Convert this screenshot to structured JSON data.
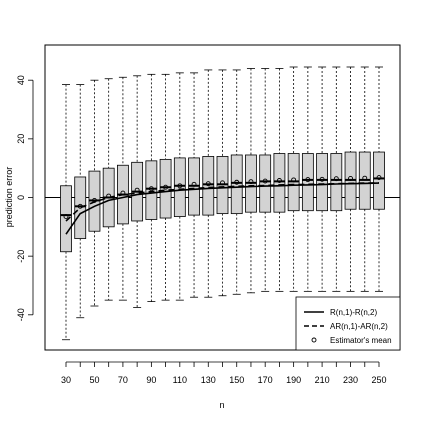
{
  "chart_data": {
    "type": "boxplot",
    "xlabel": "n",
    "ylabel": "prediction error",
    "x_tick_labels": [
      "30",
      "50",
      "70",
      "90",
      "110",
      "130",
      "150",
      "170",
      "190",
      "210",
      "230",
      "250"
    ],
    "ylim": [
      -52,
      52
    ],
    "y_ticks": [
      -40,
      -20,
      0,
      20,
      40
    ],
    "x": [
      30,
      40,
      50,
      60,
      70,
      80,
      90,
      100,
      110,
      120,
      130,
      140,
      150,
      160,
      170,
      180,
      190,
      200,
      210,
      220,
      230,
      240,
      250
    ],
    "boxes": [
      {
        "n": 30,
        "whisker_low": -48.5,
        "q1": -18.5,
        "median": -6,
        "q3": 4,
        "whisker_high": 38.5
      },
      {
        "n": 40,
        "whisker_low": -41,
        "q1": -14,
        "median": -3,
        "q3": 7,
        "whisker_high": 38.5
      },
      {
        "n": 50,
        "whisker_low": -37,
        "q1": -11.5,
        "median": -1,
        "q3": 9,
        "whisker_high": 40
      },
      {
        "n": 60,
        "whisker_low": -35,
        "q1": -10,
        "median": 0,
        "q3": 10,
        "whisker_high": 40.5
      },
      {
        "n": 70,
        "whisker_low": -35,
        "q1": -9,
        "median": 1,
        "q3": 11,
        "whisker_high": 41
      },
      {
        "n": 80,
        "whisker_low": -37.5,
        "q1": -8,
        "median": 2,
        "q3": 12,
        "whisker_high": 41.5
      },
      {
        "n": 90,
        "whisker_low": -35.5,
        "q1": -7.5,
        "median": 3,
        "q3": 12.5,
        "whisker_high": 42
      },
      {
        "n": 100,
        "whisker_low": -35,
        "q1": -7,
        "median": 3.5,
        "q3": 13,
        "whisker_high": 42
      },
      {
        "n": 110,
        "whisker_low": -35,
        "q1": -6.5,
        "median": 4,
        "q3": 13.5,
        "whisker_high": 42.5
      },
      {
        "n": 120,
        "whisker_low": -34,
        "q1": -6,
        "median": 4,
        "q3": 13.5,
        "whisker_high": 42.5
      },
      {
        "n": 130,
        "whisker_low": -34,
        "q1": -6,
        "median": 4.5,
        "q3": 14,
        "whisker_high": 43.5
      },
      {
        "n": 140,
        "whisker_low": -33.5,
        "q1": -5.5,
        "median": 4.5,
        "q3": 14,
        "whisker_high": 43.5
      },
      {
        "n": 150,
        "whisker_low": -33,
        "q1": -5.5,
        "median": 5,
        "q3": 14.5,
        "whisker_high": 43.5
      },
      {
        "n": 160,
        "whisker_low": -32.5,
        "q1": -5,
        "median": 5,
        "q3": 14.5,
        "whisker_high": 44
      },
      {
        "n": 170,
        "whisker_low": -32,
        "q1": -5,
        "median": 5.5,
        "q3": 14.5,
        "whisker_high": 44
      },
      {
        "n": 180,
        "whisker_low": -32,
        "q1": -5,
        "median": 5.5,
        "q3": 15,
        "whisker_high": 44
      },
      {
        "n": 190,
        "whisker_low": -32,
        "q1": -4.5,
        "median": 5.5,
        "q3": 15,
        "whisker_high": 44.5
      },
      {
        "n": 200,
        "whisker_low": -32,
        "q1": -4.5,
        "median": 6,
        "q3": 15,
        "whisker_high": 44.5
      },
      {
        "n": 210,
        "whisker_low": -32,
        "q1": -4.5,
        "median": 6,
        "q3": 15,
        "whisker_high": 44.5
      },
      {
        "n": 220,
        "whisker_low": -32,
        "q1": -4.5,
        "median": 6,
        "q3": 15,
        "whisker_high": 44.5
      },
      {
        "n": 230,
        "whisker_low": -32,
        "q1": -4,
        "median": 6,
        "q3": 15.5,
        "whisker_high": 44.5
      },
      {
        "n": 240,
        "whisker_low": -32,
        "q1": -4,
        "median": 6,
        "q3": 15.5,
        "whisker_high": 44.5
      },
      {
        "n": 250,
        "whisker_low": -32,
        "q1": -4,
        "median": 6.5,
        "q3": 15.5,
        "whisker_high": 44.5
      }
    ],
    "series": [
      {
        "name": "R(n,1)-R(n,2)",
        "style": "solid",
        "values": [
          -12.5,
          -5.5,
          -3,
          -1,
          0,
          1,
          1.5,
          2,
          2.5,
          2.8,
          3.1,
          3.3,
          3.5,
          3.7,
          3.9,
          4.0,
          4.2,
          4.3,
          4.4,
          4.6,
          4.7,
          4.8,
          4.9
        ]
      },
      {
        "name": "AR(n,1)-AR(n,2)",
        "style": "dashed",
        "values": [
          -8,
          -3.5,
          -1.5,
          0,
          1,
          1.5,
          2,
          2.5,
          2.8,
          3.1,
          3.4,
          3.6,
          3.8,
          4.0,
          4.1,
          4.3,
          4.4,
          4.5,
          4.6,
          4.7,
          4.8,
          4.9,
          5.0
        ]
      },
      {
        "name": "Estimator's mean",
        "style": "points",
        "values": [
          -6.5,
          -3,
          -1,
          0.5,
          1.5,
          2.5,
          3,
          3.5,
          4,
          4.5,
          4.7,
          5,
          5.2,
          5.4,
          5.6,
          5.8,
          6,
          6.1,
          6.2,
          6.4,
          6.5,
          6.6,
          6.8
        ]
      }
    ],
    "reference_line_y": 0,
    "legend": {
      "placement": "bottom-right",
      "entries": [
        {
          "label": "R(n,1)-R(n,2)",
          "symbol": "solid-line"
        },
        {
          "label": "AR(n,1)-AR(n,2)",
          "symbol": "dashed-line"
        },
        {
          "label": "Estimator's mean",
          "symbol": "open-circle"
        }
      ]
    },
    "colors": {
      "box_fill": "#d3d3d3",
      "stroke": "#000000",
      "background": "#ffffff"
    }
  }
}
